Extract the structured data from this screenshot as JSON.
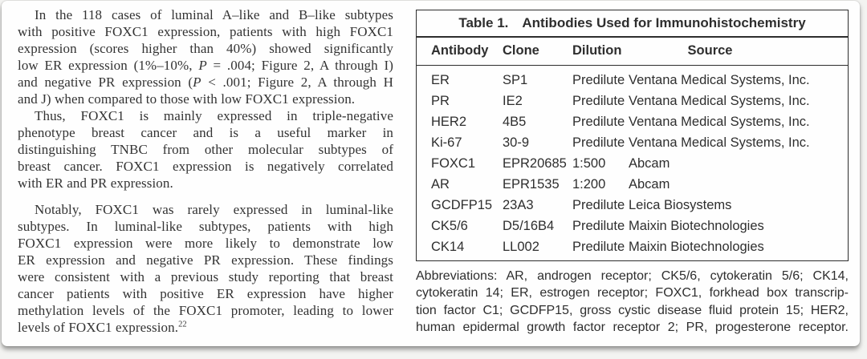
{
  "colors": {
    "page_background": "#fefefe",
    "body_text": "#333333",
    "table_border": "#2d2d2d"
  },
  "article": {
    "paragraphs": [
      {
        "lines": [
          "In the 118 cases of luminal A–like and B–like subtypes",
          "with positive FOXC1 expression, patients with high FOXC1",
          "expression (scores higher than 40%) showed significantly",
          [
            {
              "t": "low ER expression (1%–10%, "
            },
            {
              "t": "P",
              "i": true
            },
            {
              "t": " = .004; Figure 2, A through I)"
            }
          ],
          [
            {
              "t": "and negative PR expression ("
            },
            {
              "t": "P",
              "i": true
            },
            {
              "t": " < .001; Figure 2, A through H"
            }
          ],
          "and J) when compared to those with low FOXC1 expression."
        ]
      },
      {
        "lines": [
          "Thus, FOXC1 is mainly expressed in triple-negative",
          "phenotype breast cancer and is a useful marker in",
          "distinguishing TNBC from other molecular subtypes of",
          "breast cancer. FOXC1 expression is negatively correlated",
          "with ER and PR expression."
        ]
      },
      {
        "lines": [
          "Notably, FOXC1 was rarely expressed in luminal-like",
          "subtypes. In luminal-like subtypes, patients with high",
          "FOXC1 expression were more likely to demonstrate low",
          "ER expression and negative PR expression. These findings",
          "were consistent with a previous study reporting that breast",
          "cancer patients with positive ER expression have higher",
          "methylation levels of the FOXC1 promoter, leading to lower",
          [
            {
              "t": "levels of FOXC1 expression."
            },
            {
              "t": "22",
              "sup": true
            }
          ]
        ]
      }
    ]
  },
  "table": {
    "label": "Table 1.",
    "title": "Antibodies Used for Immunohistochemistry",
    "columns": [
      "Antibody",
      "Clone",
      "Dilution",
      "Source"
    ],
    "rows": [
      [
        "ER",
        "SP1",
        "Predilute",
        "Ventana Medical Systems, Inc."
      ],
      [
        "PR",
        "IE2",
        "Predilute",
        "Ventana Medical Systems, Inc."
      ],
      [
        "HER2",
        "4B5",
        "Predilute",
        "Ventana Medical Systems, Inc."
      ],
      [
        "Ki-67",
        "30-9",
        "Predilute",
        "Ventana Medical Systems, Inc."
      ],
      [
        "FOXC1",
        "EPR20685",
        "1:500",
        "Abcam"
      ],
      [
        "AR",
        "EPR1535",
        "1:200",
        "Abcam"
      ],
      [
        "GCDFP15",
        "23A3",
        "Predilute",
        "Leica Biosystems"
      ],
      [
        "CK5/6",
        "D5/16B4",
        "Predilute",
        "Maixin Biotechnologies"
      ],
      [
        "CK14",
        "LL002",
        "Predilute",
        "Maixin Biotechnologies"
      ]
    ]
  },
  "footnote": {
    "lines": [
      "Abbreviations: AR, androgen receptor; CK5/6, cytokeratin 5/6; CK14,",
      "cytokeratin 14; ER, estrogen receptor; FOXC1, forkhead box transcrip-",
      "tion factor C1; GCDFP15, gross cystic disease fluid protein 15; HER2,",
      "human epidermal growth factor receptor 2; PR, progesterone receptor."
    ]
  }
}
